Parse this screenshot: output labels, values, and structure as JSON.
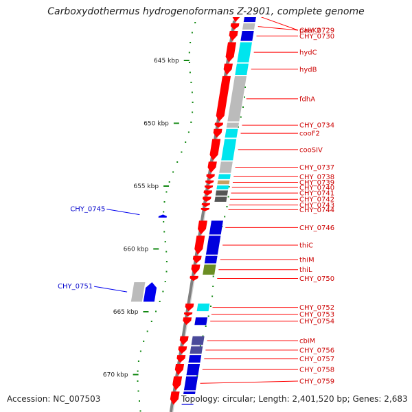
{
  "title": "Carboxydothermus hydrogenoformans Z-2901, complete genome",
  "footer": {
    "accession": "Accession: NC_007503",
    "summary": "Topology: circular; Length: 2,401,520 bp; Genes: 2,683"
  },
  "colors": {
    "forward_gene": "#ff0000",
    "reverse_gene": "#0000ee",
    "reverse_label": "#0000cc",
    "forward_label": "#cc0000",
    "backbone": "#808080",
    "cog_cyan": "#00e5ee",
    "cog_gray": "#bbbbbb",
    "cog_blue": "#0000dd",
    "cog_olive": "#6b8e23",
    "cog_darkgray": "#555555",
    "cog_tan": "#c8a060",
    "cog_slate": "#4a4a9a",
    "gc_dots": "#118811"
  },
  "ruler": [
    {
      "label": "645 kbp",
      "kbp": 645
    },
    {
      "label": "650 kbp",
      "kbp": 650
    },
    {
      "label": "655 kbp",
      "kbp": 655
    },
    {
      "label": "660 kbp",
      "kbp": 660
    },
    {
      "label": "665 kbp",
      "kbp": 665
    },
    {
      "label": "670 kbp",
      "kbp": 670
    }
  ],
  "genes_forward": [
    {
      "label": "paaK2",
      "start_kbp": 641.05,
      "end_kbp": 641.95,
      "cog": "cog_blue"
    },
    {
      "label": "CHY_0729",
      "start_kbp": 642.05,
      "end_kbp": 642.55,
      "cog": "cog_gray"
    },
    {
      "label": "CHY_0730",
      "start_kbp": 642.65,
      "end_kbp": 643.45,
      "cog": "cog_blue"
    },
    {
      "label": "hydC",
      "start_kbp": 643.55,
      "end_kbp": 645.15,
      "cog": "cog_cyan"
    },
    {
      "label": "hydB",
      "start_kbp": 645.25,
      "end_kbp": 646.15,
      "cog": "cog_cyan"
    },
    {
      "label": "fdhA",
      "start_kbp": 646.25,
      "end_kbp": 649.85,
      "cog": "cog_gray"
    },
    {
      "label": "CHY_0734",
      "start_kbp": 649.95,
      "end_kbp": 650.35,
      "cog": "cog_gray"
    },
    {
      "label": "cooF2",
      "start_kbp": 650.45,
      "end_kbp": 651.15,
      "cog": "cog_cyan"
    },
    {
      "label": "cooSIV",
      "start_kbp": 651.25,
      "end_kbp": 652.95,
      "cog": "cog_cyan"
    },
    {
      "label": "CHY_0737",
      "start_kbp": 653.05,
      "end_kbp": 653.95,
      "cog": "cog_gray"
    },
    {
      "label": "CHY_0738",
      "start_kbp": 654.05,
      "end_kbp": 654.45,
      "cog": "cog_cyan"
    },
    {
      "label": "CHY_0739",
      "start_kbp": 654.55,
      "end_kbp": 654.85,
      "cog": "cog_tan"
    },
    {
      "label": "CHY_0740",
      "start_kbp": 654.95,
      "end_kbp": 655.25,
      "cog": "cog_cyan"
    },
    {
      "label": "CHY_0741",
      "start_kbp": 655.35,
      "end_kbp": 655.75,
      "cog": "cog_darkgray"
    },
    {
      "label": "CHY_0742",
      "start_kbp": 655.85,
      "end_kbp": 656.25,
      "cog": "cog_darkgray"
    },
    {
      "label": "CHY_0743",
      "start_kbp": 656.35,
      "end_kbp": 656.65,
      "cog": null
    },
    {
      "label": "CHY_0744",
      "start_kbp": 656.75,
      "end_kbp": 657.0,
      "cog": null
    },
    {
      "label": "CHY_0746",
      "start_kbp": 657.75,
      "end_kbp": 658.85,
      "cog": "cog_blue"
    },
    {
      "label": "thiC",
      "start_kbp": 658.95,
      "end_kbp": 660.45,
      "cog": "cog_blue"
    },
    {
      "label": "thiM",
      "start_kbp": 660.55,
      "end_kbp": 661.15,
      "cog": "cog_blue"
    },
    {
      "label": "thiL",
      "start_kbp": 661.25,
      "end_kbp": 662.05,
      "cog": "cog_olive"
    },
    {
      "label": "CHY_0750",
      "start_kbp": 662.15,
      "end_kbp": 662.55,
      "cog": null
    },
    {
      "label": "CHY_0752",
      "start_kbp": 664.35,
      "end_kbp": 664.95,
      "cog": "cog_cyan"
    },
    {
      "label": "CHY_0753",
      "start_kbp": 665.05,
      "end_kbp": 665.35,
      "cog": null
    },
    {
      "label": "CHY_0754",
      "start_kbp": 665.45,
      "end_kbp": 666.05,
      "cog": "cog_blue"
    },
    {
      "label": "cbiM",
      "start_kbp": 666.95,
      "end_kbp": 667.65,
      "cog": "cog_slate"
    },
    {
      "label": "CHY_0756",
      "start_kbp": 667.75,
      "end_kbp": 668.35,
      "cog": "cog_slate"
    },
    {
      "label": "CHY_0757",
      "start_kbp": 668.45,
      "end_kbp": 669.05,
      "cog": "cog_blue"
    },
    {
      "label": "CHY_0758",
      "start_kbp": 669.15,
      "end_kbp": 670.05,
      "cog": "cog_blue"
    },
    {
      "label": "CHY_0759",
      "start_kbp": 670.15,
      "end_kbp": 671.25,
      "cog": "cog_blue"
    },
    {
      "label": "",
      "start_kbp": 671.35,
      "end_kbp": 672.4,
      "cog": "cog_blue"
    }
  ],
  "genes_reverse": [
    {
      "label": "CHY_0745",
      "start_kbp": 657.15,
      "end_kbp": 657.4,
      "cog": null
    },
    {
      "label": "CHY_0751",
      "start_kbp": 662.65,
      "end_kbp": 664.2,
      "cog": "cog_gray"
    }
  ]
}
